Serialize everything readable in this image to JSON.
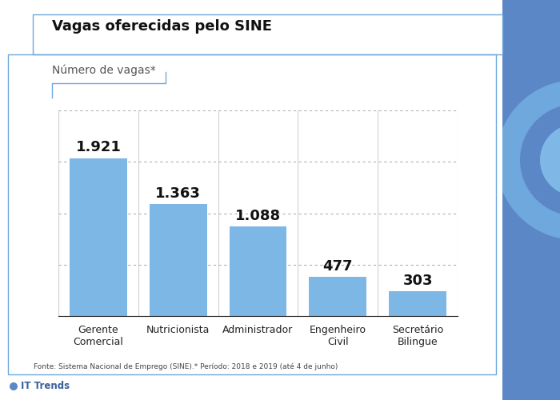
{
  "chart_data": {
    "type": "bar",
    "title": "Vagas oferecidas pelo SINE",
    "subtitle": "Número de vagas*",
    "categories": [
      "Gerente\nComercial",
      "Nutricionista",
      "Administrador",
      "Engenheiro\nCivil",
      "Secretário\nBilingue"
    ],
    "values": [
      1921,
      1363,
      1088,
      477,
      303
    ],
    "value_labels": [
      "1.921",
      "1.363",
      "1.088",
      "477",
      "303"
    ],
    "data_labels": true,
    "color": "#7db7e6",
    "ylim": [
      0,
      2500
    ],
    "yticks": [
      0,
      625,
      1250,
      1875,
      2500
    ],
    "grid": true,
    "tick_labels": "x",
    "source": "Fonte: Sistema Nacional de Emprego (SINE).* Período: 2018 e 2019 (até 4 de junho)",
    "brand": "IT Trends"
  }
}
